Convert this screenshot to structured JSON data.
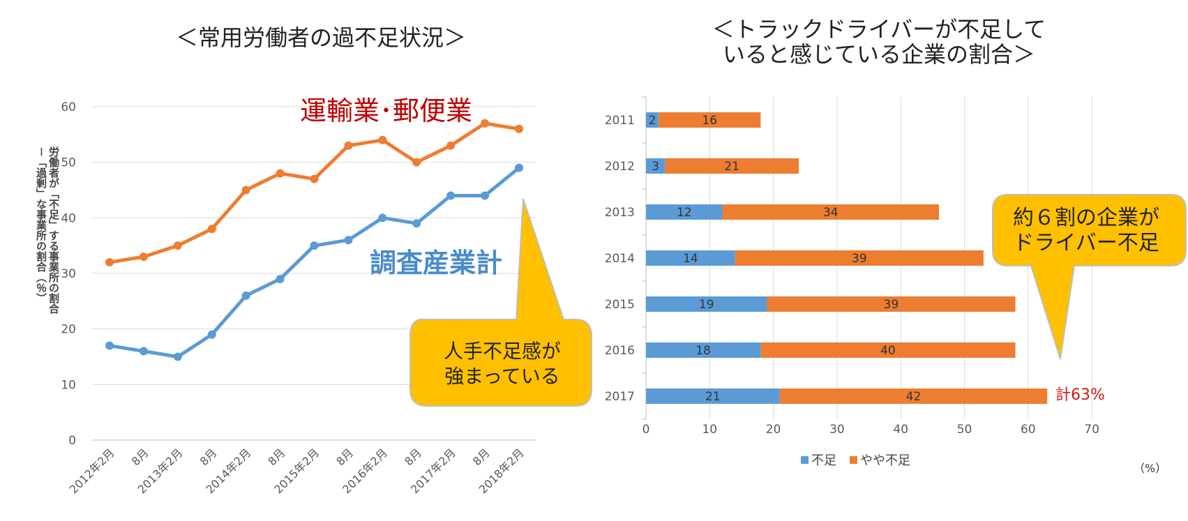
{
  "left_chart": {
    "title": "＜常用労働者の過不足状況＞",
    "ylabel_line1": "労働者が「不足」する事業所の割合",
    "ylabel_line2": "－「過剰」な事業所の割合（％）",
    "callout": {
      "line1": "人手不足感が",
      "line2": "強まっている"
    },
    "series_labels": {
      "transport": "運輸業･郵便業",
      "all": "調査産業計"
    }
  },
  "right_chart": {
    "title_line1": "＜トラックドライバーが不足して",
    "title_line2": "いると感じている企業の割合＞",
    "callout": {
      "line1": "約６割の企業が",
      "line2": "ドライバー不足"
    },
    "annotation_total": "計63%",
    "unit": "（%）"
  },
  "colors": {
    "blue": "#5b9bd5",
    "orange": "#ed7d31",
    "callout_fill": "#ffc000",
    "callout_stroke": "#bfbfbf",
    "grid": "#d9d9d9",
    "total_red": "#d01818"
  },
  "chart_data": [
    {
      "type": "line",
      "categories": [
        "2012年2月",
        "8月",
        "2013年2月",
        "8月",
        "2014年2月",
        "8月",
        "2015年2月",
        "8月",
        "2016年2月",
        "8月",
        "2017年2月",
        "8月",
        "2018年2月"
      ],
      "series": [
        {
          "name": "運輸業･郵便業",
          "values": [
            32,
            33,
            35,
            38,
            45,
            48,
            47,
            53,
            54,
            50,
            53,
            57,
            56
          ]
        },
        {
          "name": "調査産業計",
          "values": [
            17,
            16,
            15,
            19,
            26,
            29,
            35,
            36,
            40,
            39,
            44,
            44,
            49
          ]
        }
      ],
      "ylim": [
        0,
        60
      ],
      "yticks": [
        0,
        10,
        20,
        30,
        40,
        50,
        60
      ],
      "grid": true
    },
    {
      "type": "bar",
      "orientation": "horizontal",
      "stacked": true,
      "categories": [
        "2011",
        "2012",
        "2013",
        "2014",
        "2015",
        "2016",
        "2017"
      ],
      "series": [
        {
          "name": "不足",
          "values": [
            2,
            3,
            12,
            14,
            19,
            18,
            21
          ]
        },
        {
          "name": "やや不足",
          "values": [
            16,
            21,
            34,
            39,
            39,
            40,
            42
          ]
        }
      ],
      "xlim": [
        0,
        70
      ],
      "xticks": [
        0,
        10,
        20,
        30,
        40,
        50,
        60,
        70
      ],
      "legend": "bottom",
      "grid": true
    }
  ]
}
